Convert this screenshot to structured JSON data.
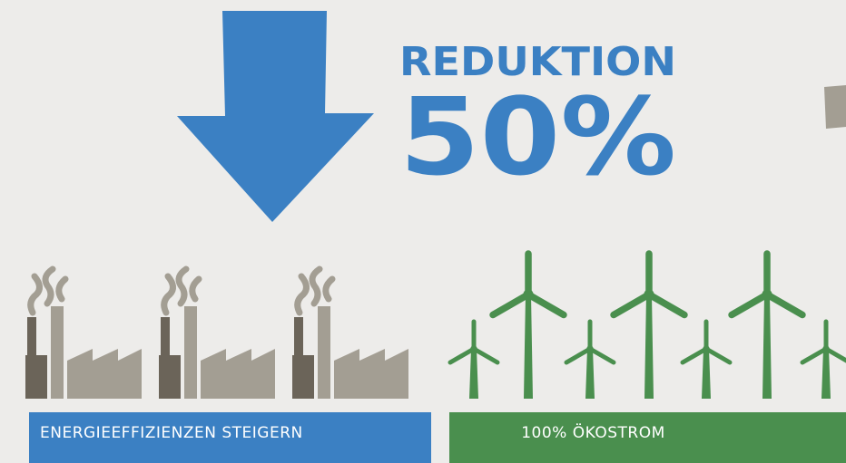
{
  "headline": {
    "label": "REDUKTION",
    "value": "50%"
  },
  "panels": [
    {
      "label": "ENERGIEEFFIZIENZEN STEIGERN"
    },
    {
      "label": "100% ÖKOSTROM"
    }
  ]
}
